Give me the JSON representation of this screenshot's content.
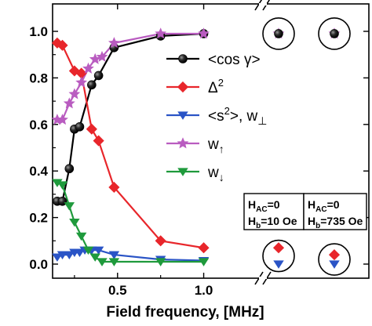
{
  "chart_data": {
    "type": "line",
    "xlabel": "Field frequency, [MHz]",
    "ylabel": "",
    "xlim": [
      0.0,
      1.33
    ],
    "ylim": [
      -0.05,
      1.1
    ],
    "grid": false,
    "legend_position": "right",
    "x_ticks": [
      {
        "value": 0.5,
        "label": "0.5"
      },
      {
        "value": 1.0,
        "label": "1.0"
      }
    ],
    "y_ticks": [
      {
        "value": 0.0,
        "label": "0.0"
      },
      {
        "value": 0.2,
        "label": "0.2"
      },
      {
        "value": 0.4,
        "label": "0.4"
      },
      {
        "value": 0.6,
        "label": "0.6"
      },
      {
        "value": 0.8,
        "label": "0.8"
      },
      {
        "value": 1.0,
        "label": "1.0"
      }
    ],
    "series": [
      {
        "key": "cos",
        "name": "<cos γ>",
        "legend_sup": "",
        "legend_sub": "",
        "color": "#000000",
        "marker": "sphere",
        "x": [
          0.15,
          0.18,
          0.22,
          0.25,
          0.28,
          0.35,
          0.39,
          0.48,
          0.75,
          1.0
        ],
        "y": [
          0.27,
          0.27,
          0.41,
          0.58,
          0.59,
          0.77,
          0.81,
          0.93,
          0.98,
          0.99
        ]
      },
      {
        "key": "delta",
        "name": "Δ",
        "legend_sup": "2",
        "legend_sub": "",
        "color": "#e8262b",
        "marker": "diamond",
        "x": [
          0.15,
          0.18,
          0.25,
          0.29,
          0.35,
          0.39,
          0.48,
          0.75,
          1.0
        ],
        "y": [
          0.95,
          0.94,
          0.83,
          0.82,
          0.58,
          0.53,
          0.33,
          0.1,
          0.07
        ]
      },
      {
        "key": "s2",
        "name": "<s",
        "legend_sup": "2",
        "legend_tail": ">, w",
        "legend_sub": "⊥",
        "color": "#2a54c6",
        "marker": "triangle-down",
        "x": [
          0.15,
          0.18,
          0.22,
          0.25,
          0.28,
          0.31,
          0.35,
          0.39,
          0.48,
          0.75,
          1.0
        ],
        "y": [
          0.03,
          0.04,
          0.04,
          0.05,
          0.05,
          0.06,
          0.06,
          0.06,
          0.04,
          0.02,
          0.015
        ]
      },
      {
        "key": "wup",
        "name": "w",
        "legend_sup": "",
        "legend_sub": "↑",
        "color": "#b95cc0",
        "marker": "star",
        "x": [
          0.15,
          0.18,
          0.22,
          0.25,
          0.29,
          0.33,
          0.37,
          0.41,
          0.48,
          0.75,
          1.0
        ],
        "y": [
          0.62,
          0.62,
          0.69,
          0.73,
          0.78,
          0.84,
          0.88,
          0.89,
          0.95,
          0.99,
          0.99
        ]
      },
      {
        "key": "wdown",
        "name": "w",
        "legend_sup": "",
        "legend_sub": "↓",
        "color": "#1f9a3c",
        "marker": "triangle-down",
        "x": [
          0.15,
          0.18,
          0.22,
          0.25,
          0.29,
          0.33,
          0.37,
          0.41,
          0.48,
          0.75,
          1.0
        ],
        "y": [
          0.35,
          0.34,
          0.25,
          0.18,
          0.12,
          0.06,
          0.03,
          0.01,
          0.01,
          0.01,
          0.01
        ]
      }
    ],
    "boxed_labels": [
      {
        "line1": "H",
        "line1_sub": "AC",
        "line1_tail": "=0",
        "line2": "H",
        "line2_sub": "b",
        "line2_tail": "=10 Oe"
      },
      {
        "line1": "H",
        "line1_sub": "AC",
        "line1_tail": "=0",
        "line2": "H",
        "line2_sub": "b",
        "line2_tail": "=735 Oe"
      }
    ],
    "static_points": [
      {
        "group": 0,
        "markers": [
          {
            "series": "wup",
            "y": 0.99
          },
          {
            "series": "cos",
            "y": 0.99
          }
        ]
      },
      {
        "group": 1,
        "markers": [
          {
            "series": "wup",
            "y": 0.99
          },
          {
            "series": "cos",
            "y": 0.99
          }
        ]
      },
      {
        "group": 0,
        "markers": [
          {
            "series": "delta",
            "y": 0.07
          },
          {
            "series": "s2",
            "y": 0.0
          }
        ]
      },
      {
        "group": 1,
        "markers": [
          {
            "series": "delta",
            "y": 0.04
          },
          {
            "series": "s2",
            "y": 0.0
          }
        ]
      }
    ]
  }
}
